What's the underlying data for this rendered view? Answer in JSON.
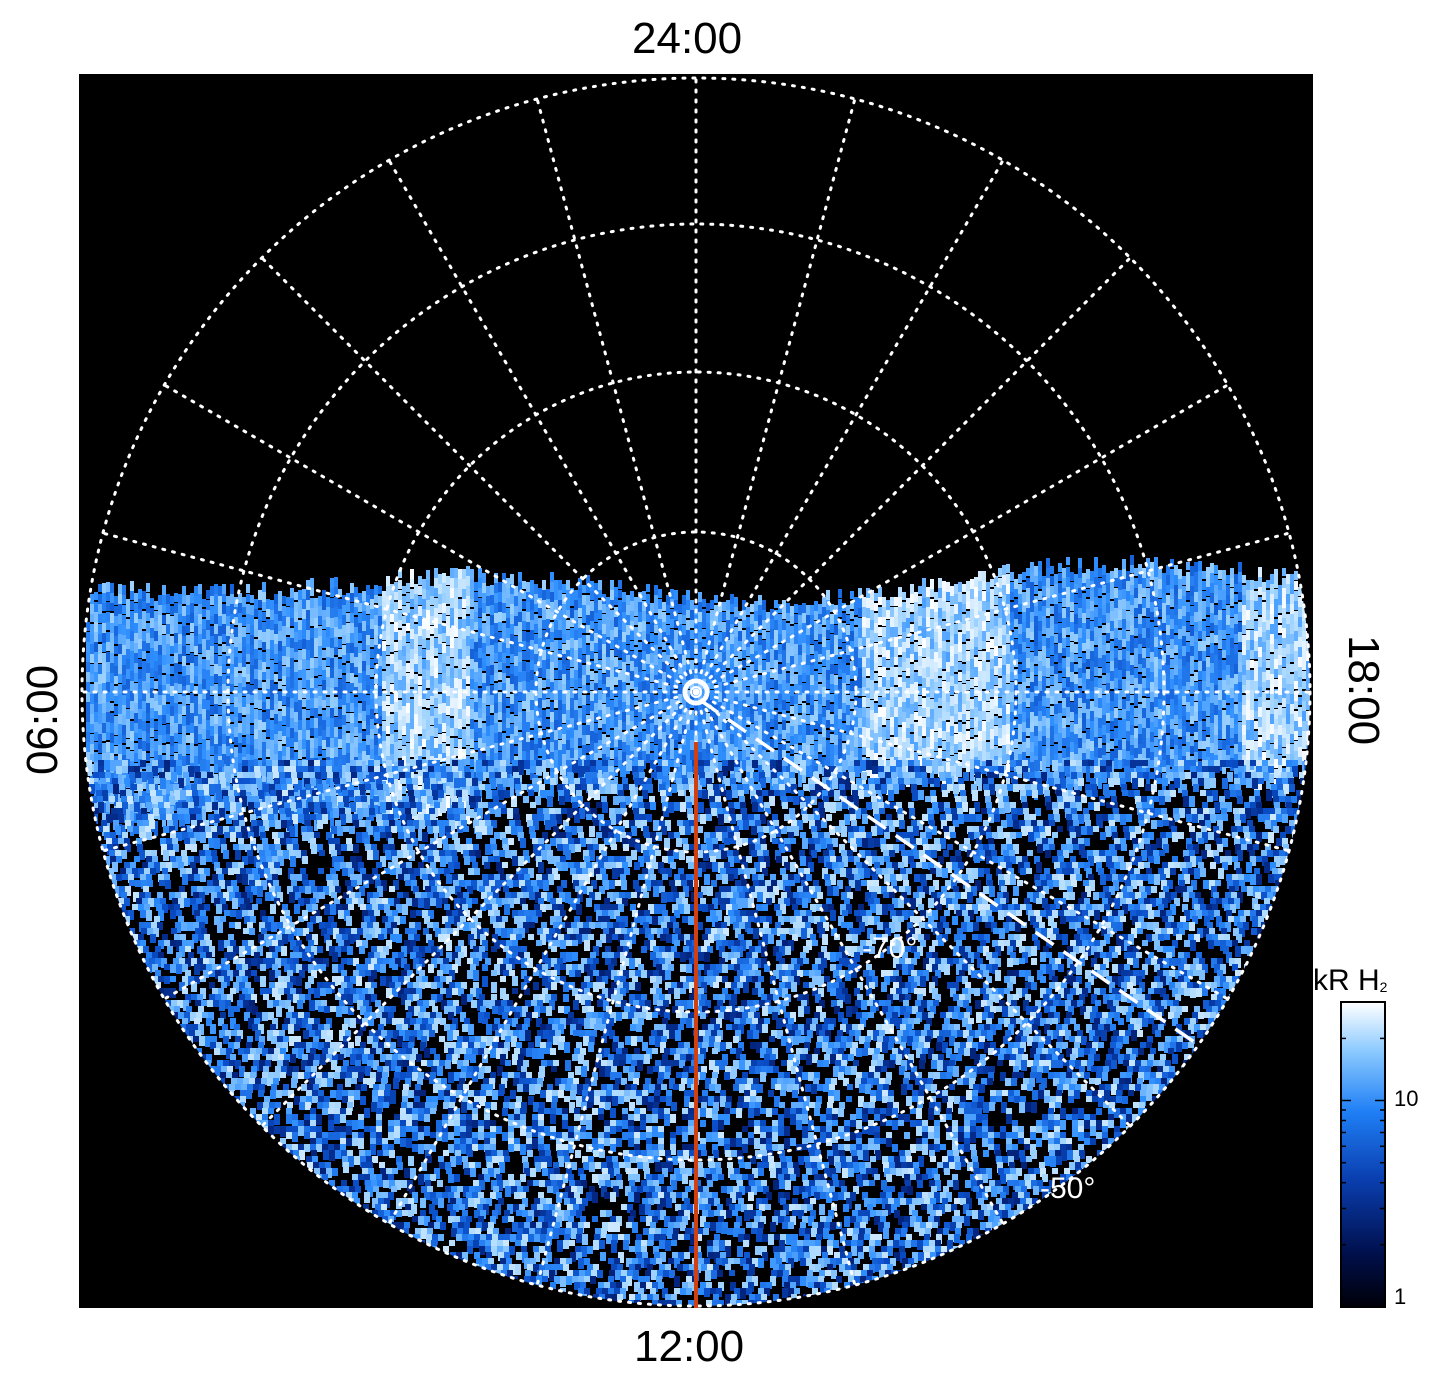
{
  "figure": {
    "time_labels": {
      "top": "24:00",
      "bottom": "12:00",
      "left": "06:00",
      "right": "18:00"
    },
    "latitude_labels": [
      "-70°",
      "-50°"
    ],
    "colorbar": {
      "title": "kR H",
      "title_sub": "2",
      "ticks": [
        "10",
        "1"
      ],
      "scale": "log",
      "range": [
        1,
        30
      ],
      "colors": [
        "#000010",
        "#00105a",
        "#0a4fc9",
        "#2f8fff",
        "#9dd2ff",
        "#ffffff"
      ]
    },
    "colors": {
      "background": "#000000",
      "grid": "#ffffff",
      "noon_meridian": "#d04010"
    }
  }
}
